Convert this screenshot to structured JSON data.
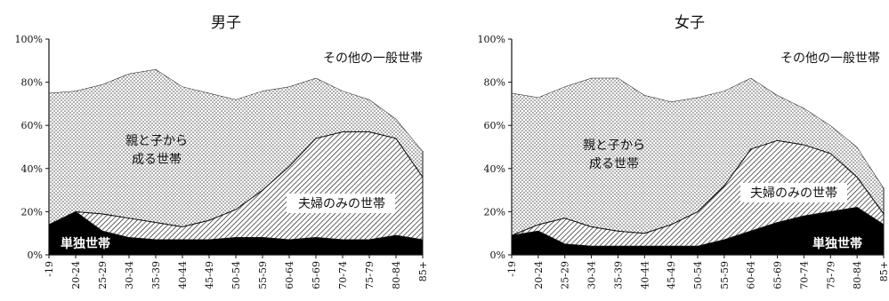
{
  "chart_data": [
    {
      "type": "area",
      "title": "男子",
      "categories": [
        "-19",
        "20-24",
        "25-29",
        "30-34",
        "35-39",
        "40-44",
        "45-49",
        "50-54",
        "55-59",
        "60-64",
        "65-69",
        "70-74",
        "75-79",
        "80-84",
        "85+"
      ],
      "ylim": [
        0,
        100
      ],
      "yticks": [
        "0%",
        "20%",
        "40%",
        "60%",
        "80%",
        "100%"
      ],
      "stacked": true,
      "grid": false,
      "series": [
        {
          "name": "単独世帯",
          "values": [
            14,
            20,
            11,
            8,
            7,
            7,
            7,
            8,
            8,
            7,
            8,
            7,
            7,
            9,
            7
          ]
        },
        {
          "name": "夫婦のみの世帯",
          "values": [
            0,
            0,
            8,
            9,
            8,
            6,
            9,
            13,
            22,
            34,
            46,
            50,
            50,
            45,
            29
          ]
        },
        {
          "name": "親と子から成る世帯",
          "values": [
            61,
            56,
            60,
            67,
            71,
            65,
            59,
            51,
            46,
            37,
            28,
            19,
            15,
            9,
            12
          ]
        },
        {
          "name": "その他の一般世帯",
          "values": [
            25,
            24,
            21,
            16,
            14,
            22,
            25,
            28,
            24,
            22,
            18,
            24,
            28,
            37,
            52
          ]
        }
      ],
      "labels": {
        "series0": "単独世帯",
        "series1": "夫婦のみの世帯",
        "series2": "親と子から成る世帯",
        "series3": "その他の一般世帯"
      }
    },
    {
      "type": "area",
      "title": "女子",
      "categories": [
        "-19",
        "20-24",
        "25-29",
        "30-34",
        "35-39",
        "40-44",
        "45-49",
        "50-54",
        "55-59",
        "60-64",
        "65-69",
        "70-74",
        "75-79",
        "80-84",
        "85+"
      ],
      "ylim": [
        0,
        100
      ],
      "yticks": [
        "0%",
        "20%",
        "40%",
        "60%",
        "80%",
        "100%"
      ],
      "stacked": true,
      "grid": false,
      "series": [
        {
          "name": "単独世帯",
          "values": [
            9,
            11,
            5,
            4,
            4,
            4,
            4,
            4,
            7,
            11,
            15,
            18,
            20,
            22,
            14
          ]
        },
        {
          "name": "夫婦のみの世帯",
          "values": [
            0,
            3,
            12,
            9,
            7,
            6,
            10,
            16,
            25,
            38,
            38,
            33,
            27,
            14,
            5
          ]
        },
        {
          "name": "親と子から成る世帯",
          "values": [
            66,
            59,
            61,
            69,
            71,
            64,
            57,
            53,
            44,
            33,
            21,
            17,
            13,
            14,
            12
          ]
        },
        {
          "name": "その他の一般世帯",
          "values": [
            25,
            27,
            22,
            18,
            18,
            26,
            29,
            27,
            24,
            18,
            26,
            32,
            40,
            50,
            69
          ]
        }
      ],
      "labels": {
        "series0": "単独世帯",
        "series1": "夫婦のみの世帯",
        "series2": "親と子から成る世帯",
        "series3": "その他の一般世帯"
      }
    }
  ]
}
